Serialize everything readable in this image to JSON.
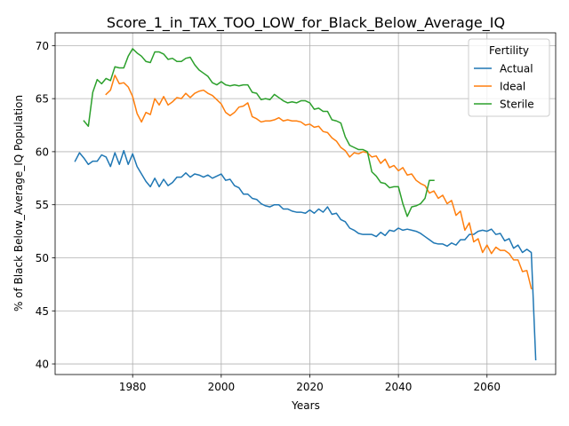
{
  "chart_data": {
    "type": "line",
    "title": "Score_1_in_TAX_TOO_LOW_for_Black_Below_Average_IQ",
    "xlabel": "Years",
    "ylabel": "% of Black Below_Average_IQ Population",
    "xlim": [
      1962.5,
      2075.5
    ],
    "ylim": [
      39,
      71.2
    ],
    "xticks": [
      1980,
      2000,
      2020,
      2040,
      2060
    ],
    "yticks": [
      40,
      45,
      50,
      55,
      60,
      65,
      70
    ],
    "grid": true,
    "legend": {
      "title": "Fertility",
      "placement": "top-right"
    },
    "series": [
      {
        "name": "Actual",
        "color": "#1f77b4",
        "points": [
          [
            1967,
            59.1
          ],
          [
            1968,
            59.9
          ],
          [
            1969,
            59.4
          ],
          [
            1970,
            58.8
          ],
          [
            1971,
            59.1
          ],
          [
            1972,
            59.1
          ],
          [
            1973,
            59.7
          ],
          [
            1974,
            59.5
          ],
          [
            1975,
            58.6
          ],
          [
            1976,
            59.9
          ],
          [
            1977,
            58.8
          ],
          [
            1978,
            60.1
          ],
          [
            1979,
            58.8
          ],
          [
            1980,
            59.8
          ],
          [
            1981,
            58.6
          ],
          [
            1982,
            57.9
          ],
          [
            1983,
            57.2
          ],
          [
            1984,
            56.7
          ],
          [
            1985,
            57.5
          ],
          [
            1986,
            56.7
          ],
          [
            1987,
            57.4
          ],
          [
            1988,
            56.8
          ],
          [
            1989,
            57.1
          ],
          [
            1990,
            57.6
          ],
          [
            1991,
            57.6
          ],
          [
            1992,
            58.0
          ],
          [
            1993,
            57.6
          ],
          [
            1994,
            57.9
          ],
          [
            1995,
            57.8
          ],
          [
            1996,
            57.6
          ],
          [
            1997,
            57.8
          ],
          [
            1998,
            57.5
          ],
          [
            1999,
            57.7
          ],
          [
            2000,
            57.9
          ],
          [
            2001,
            57.3
          ],
          [
            2002,
            57.4
          ],
          [
            2003,
            56.8
          ],
          [
            2004,
            56.6
          ],
          [
            2005,
            56.0
          ],
          [
            2006,
            56.0
          ],
          [
            2007,
            55.6
          ],
          [
            2008,
            55.5
          ],
          [
            2009,
            55.1
          ],
          [
            2010,
            54.9
          ],
          [
            2011,
            54.8
          ],
          [
            2012,
            55.0
          ],
          [
            2013,
            55.0
          ],
          [
            2014,
            54.6
          ],
          [
            2015,
            54.6
          ],
          [
            2016,
            54.4
          ],
          [
            2017,
            54.3
          ],
          [
            2018,
            54.3
          ],
          [
            2019,
            54.2
          ],
          [
            2020,
            54.5
          ],
          [
            2021,
            54.2
          ],
          [
            2022,
            54.6
          ],
          [
            2023,
            54.3
          ],
          [
            2024,
            54.8
          ],
          [
            2025,
            54.1
          ],
          [
            2026,
            54.2
          ],
          [
            2027,
            53.6
          ],
          [
            2028,
            53.4
          ],
          [
            2029,
            52.8
          ],
          [
            2030,
            52.6
          ],
          [
            2031,
            52.3
          ],
          [
            2032,
            52.2
          ],
          [
            2033,
            52.2
          ],
          [
            2034,
            52.2
          ],
          [
            2035,
            52.0
          ],
          [
            2036,
            52.4
          ],
          [
            2037,
            52.1
          ],
          [
            2038,
            52.6
          ],
          [
            2039,
            52.5
          ],
          [
            2040,
            52.8
          ],
          [
            2041,
            52.6
          ],
          [
            2042,
            52.7
          ],
          [
            2043,
            52.6
          ],
          [
            2044,
            52.5
          ],
          [
            2045,
            52.3
          ],
          [
            2046,
            52.0
          ],
          [
            2047,
            51.7
          ],
          [
            2048,
            51.4
          ],
          [
            2049,
            51.3
          ],
          [
            2050,
            51.3
          ],
          [
            2051,
            51.1
          ],
          [
            2052,
            51.4
          ],
          [
            2053,
            51.2
          ],
          [
            2054,
            51.7
          ],
          [
            2055,
            51.7
          ],
          [
            2056,
            52.2
          ],
          [
            2057,
            52.2
          ],
          [
            2058,
            52.5
          ],
          [
            2059,
            52.6
          ],
          [
            2060,
            52.5
          ],
          [
            2061,
            52.7
          ],
          [
            2062,
            52.2
          ],
          [
            2063,
            52.3
          ],
          [
            2064,
            51.6
          ],
          [
            2065,
            51.8
          ],
          [
            2066,
            50.9
          ],
          [
            2067,
            51.2
          ],
          [
            2068,
            50.5
          ],
          [
            2069,
            50.8
          ],
          [
            2070,
            50.5
          ],
          [
            2071,
            40.4
          ]
        ]
      },
      {
        "name": "Ideal",
        "color": "#ff7f0e",
        "points": [
          [
            1974,
            65.4
          ],
          [
            1975,
            65.8
          ],
          [
            1976,
            67.2
          ],
          [
            1977,
            66.4
          ],
          [
            1978,
            66.5
          ],
          [
            1979,
            66.1
          ],
          [
            1980,
            65.2
          ],
          [
            1981,
            63.6
          ],
          [
            1982,
            62.8
          ],
          [
            1983,
            63.7
          ],
          [
            1984,
            63.5
          ],
          [
            1985,
            65.0
          ],
          [
            1986,
            64.4
          ],
          [
            1987,
            65.2
          ],
          [
            1988,
            64.4
          ],
          [
            1989,
            64.7
          ],
          [
            1990,
            65.1
          ],
          [
            1991,
            65.0
          ],
          [
            1992,
            65.5
          ],
          [
            1993,
            65.1
          ],
          [
            1994,
            65.5
          ],
          [
            1995,
            65.7
          ],
          [
            1996,
            65.8
          ],
          [
            1997,
            65.5
          ],
          [
            1998,
            65.3
          ],
          [
            1999,
            64.9
          ],
          [
            2000,
            64.5
          ],
          [
            2001,
            63.7
          ],
          [
            2002,
            63.4
          ],
          [
            2003,
            63.7
          ],
          [
            2004,
            64.2
          ],
          [
            2005,
            64.3
          ],
          [
            2006,
            64.6
          ],
          [
            2007,
            63.3
          ],
          [
            2008,
            63.1
          ],
          [
            2009,
            62.8
          ],
          [
            2010,
            62.9
          ],
          [
            2011,
            62.9
          ],
          [
            2012,
            63.0
          ],
          [
            2013,
            63.2
          ],
          [
            2014,
            62.9
          ],
          [
            2015,
            63.0
          ],
          [
            2016,
            62.9
          ],
          [
            2017,
            62.9
          ],
          [
            2018,
            62.8
          ],
          [
            2019,
            62.5
          ],
          [
            2020,
            62.6
          ],
          [
            2021,
            62.3
          ],
          [
            2022,
            62.4
          ],
          [
            2023,
            61.9
          ],
          [
            2024,
            61.8
          ],
          [
            2025,
            61.3
          ],
          [
            2026,
            61.0
          ],
          [
            2027,
            60.4
          ],
          [
            2028,
            60.1
          ],
          [
            2029,
            59.5
          ],
          [
            2030,
            59.9
          ],
          [
            2031,
            59.8
          ],
          [
            2032,
            60.0
          ],
          [
            2033,
            59.9
          ],
          [
            2034,
            59.5
          ],
          [
            2035,
            59.6
          ],
          [
            2036,
            58.9
          ],
          [
            2037,
            59.3
          ],
          [
            2038,
            58.5
          ],
          [
            2039,
            58.7
          ],
          [
            2040,
            58.2
          ],
          [
            2041,
            58.5
          ],
          [
            2042,
            57.8
          ],
          [
            2043,
            57.9
          ],
          [
            2044,
            57.3
          ],
          [
            2045,
            57.0
          ],
          [
            2046,
            56.8
          ],
          [
            2047,
            56.1
          ],
          [
            2048,
            56.3
          ],
          [
            2049,
            55.6
          ],
          [
            2050,
            55.9
          ],
          [
            2051,
            55.1
          ],
          [
            2052,
            55.4
          ],
          [
            2053,
            54.0
          ],
          [
            2054,
            54.4
          ],
          [
            2055,
            52.6
          ],
          [
            2056,
            53.3
          ],
          [
            2057,
            51.5
          ],
          [
            2058,
            51.8
          ],
          [
            2059,
            50.5
          ],
          [
            2060,
            51.2
          ],
          [
            2061,
            50.4
          ],
          [
            2062,
            51.0
          ],
          [
            2063,
            50.7
          ],
          [
            2064,
            50.7
          ],
          [
            2065,
            50.4
          ],
          [
            2066,
            49.8
          ],
          [
            2067,
            49.8
          ],
          [
            2068,
            48.7
          ],
          [
            2069,
            48.8
          ],
          [
            2070,
            47.1
          ]
        ]
      },
      {
        "name": "Sterile",
        "color": "#2ca02c",
        "points": [
          [
            1969,
            62.9
          ],
          [
            1970,
            62.4
          ],
          [
            1971,
            65.6
          ],
          [
            1972,
            66.8
          ],
          [
            1973,
            66.4
          ],
          [
            1974,
            66.9
          ],
          [
            1975,
            66.7
          ],
          [
            1976,
            68.0
          ],
          [
            1977,
            67.9
          ],
          [
            1978,
            67.9
          ],
          [
            1979,
            69.0
          ],
          [
            1980,
            69.7
          ],
          [
            1981,
            69.3
          ],
          [
            1982,
            69.0
          ],
          [
            1983,
            68.5
          ],
          [
            1984,
            68.4
          ],
          [
            1985,
            69.4
          ],
          [
            1986,
            69.4
          ],
          [
            1987,
            69.2
          ],
          [
            1988,
            68.7
          ],
          [
            1989,
            68.8
          ],
          [
            1990,
            68.5
          ],
          [
            1991,
            68.5
          ],
          [
            1992,
            68.8
          ],
          [
            1993,
            68.9
          ],
          [
            1994,
            68.2
          ],
          [
            1995,
            67.7
          ],
          [
            1996,
            67.4
          ],
          [
            1997,
            67.1
          ],
          [
            1998,
            66.5
          ],
          [
            1999,
            66.3
          ],
          [
            2000,
            66.6
          ],
          [
            2001,
            66.3
          ],
          [
            2002,
            66.2
          ],
          [
            2003,
            66.3
          ],
          [
            2004,
            66.2
          ],
          [
            2005,
            66.3
          ],
          [
            2006,
            66.3
          ],
          [
            2007,
            65.6
          ],
          [
            2008,
            65.5
          ],
          [
            2009,
            64.9
          ],
          [
            2010,
            65.0
          ],
          [
            2011,
            64.9
          ],
          [
            2012,
            65.4
          ],
          [
            2013,
            65.1
          ],
          [
            2014,
            64.8
          ],
          [
            2015,
            64.6
          ],
          [
            2016,
            64.7
          ],
          [
            2017,
            64.6
          ],
          [
            2018,
            64.8
          ],
          [
            2019,
            64.8
          ],
          [
            2020,
            64.6
          ],
          [
            2021,
            64.0
          ],
          [
            2022,
            64.1
          ],
          [
            2023,
            63.8
          ],
          [
            2024,
            63.8
          ],
          [
            2025,
            63.0
          ],
          [
            2026,
            62.9
          ],
          [
            2027,
            62.7
          ],
          [
            2028,
            61.4
          ],
          [
            2029,
            60.6
          ],
          [
            2030,
            60.4
          ],
          [
            2031,
            60.2
          ],
          [
            2032,
            60.2
          ],
          [
            2033,
            60.0
          ],
          [
            2034,
            58.1
          ],
          [
            2035,
            57.7
          ],
          [
            2036,
            57.1
          ],
          [
            2037,
            57.0
          ],
          [
            2038,
            56.6
          ],
          [
            2039,
            56.7
          ],
          [
            2040,
            56.7
          ],
          [
            2041,
            55.1
          ],
          [
            2042,
            53.9
          ],
          [
            2043,
            54.8
          ],
          [
            2044,
            54.9
          ],
          [
            2045,
            55.1
          ],
          [
            2046,
            55.6
          ],
          [
            2047,
            57.3
          ],
          [
            2048,
            57.3
          ]
        ]
      }
    ]
  }
}
